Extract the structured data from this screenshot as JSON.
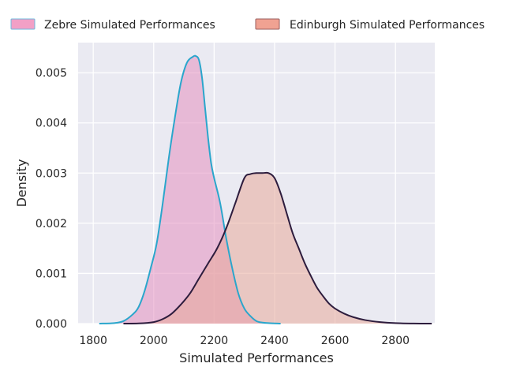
{
  "chart_data": {
    "type": "area",
    "xlabel": "Simulated Performances",
    "ylabel": "Density",
    "xlim": [
      1750,
      2930
    ],
    "ylim": [
      0,
      0.0056
    ],
    "x_ticks": [
      1800,
      2000,
      2200,
      2400,
      2600,
      2800
    ],
    "y_ticks": [
      0,
      0.001,
      0.002,
      0.003,
      0.004,
      0.005
    ],
    "x_tick_labels": [
      "1800",
      "2000",
      "2200",
      "2400",
      "2600",
      "2800"
    ],
    "y_tick_labels": [
      "0.000",
      "0.001",
      "0.002",
      "0.003",
      "0.004",
      "0.005"
    ],
    "grid": true,
    "legend_position": "top",
    "background_color": "#eaeaf2",
    "series": [
      {
        "name": "Zebre Simulated Performances",
        "fill_color": "#e38fbf",
        "fill_opacity": 0.55,
        "line_color": "#2aa6cc",
        "legend_patch_color": "#f2a0c6",
        "legend_edge_color": "#6fb8dd",
        "x": [
          1820,
          1870,
          1900,
          1930,
          1950,
          1970,
          1990,
          2010,
          2030,
          2050,
          2070,
          2090,
          2110,
          2130,
          2140,
          2150,
          2160,
          2170,
          2180,
          2190,
          2200,
          2220,
          2240,
          2260,
          2280,
          2300,
          2320,
          2340,
          2360,
          2380,
          2420
        ],
        "values": [
          0.0,
          1e-05,
          5e-05,
          0.00018,
          0.00033,
          0.00065,
          0.0011,
          0.0016,
          0.0024,
          0.0033,
          0.0041,
          0.0048,
          0.0052,
          0.00532,
          0.00533,
          0.00525,
          0.0049,
          0.0043,
          0.0037,
          0.0032,
          0.0029,
          0.0024,
          0.0017,
          0.0011,
          0.0006,
          0.0003,
          0.00015,
          5e-05,
          2e-05,
          1e-05,
          0.0
        ]
      },
      {
        "name": "Edinburgh Simulated Performances",
        "fill_color": "#e8a99a",
        "fill_opacity": 0.55,
        "line_color": "#2d1c3d",
        "legend_patch_color": "#f0a292",
        "legend_edge_color": "#9a5f5f",
        "x": [
          1900,
          1950,
          2000,
          2030,
          2060,
          2090,
          2120,
          2150,
          2180,
          2210,
          2240,
          2270,
          2300,
          2320,
          2340,
          2360,
          2380,
          2400,
          2420,
          2440,
          2460,
          2480,
          2500,
          2520,
          2540,
          2560,
          2580,
          2600,
          2630,
          2660,
          2700,
          2750,
          2800,
          2860,
          2920
        ],
        "values": [
          0.0,
          3e-06,
          3e-05,
          9e-05,
          0.0002,
          0.00038,
          0.0006,
          0.0009,
          0.0012,
          0.0015,
          0.0019,
          0.0024,
          0.0029,
          0.00298,
          0.003,
          0.003,
          0.003,
          0.0029,
          0.0026,
          0.0022,
          0.0018,
          0.0015,
          0.0012,
          0.00095,
          0.00072,
          0.00055,
          0.0004,
          0.0003,
          0.0002,
          0.00013,
          7e-05,
          3e-05,
          1e-05,
          2e-06,
          0.0
        ]
      }
    ]
  }
}
